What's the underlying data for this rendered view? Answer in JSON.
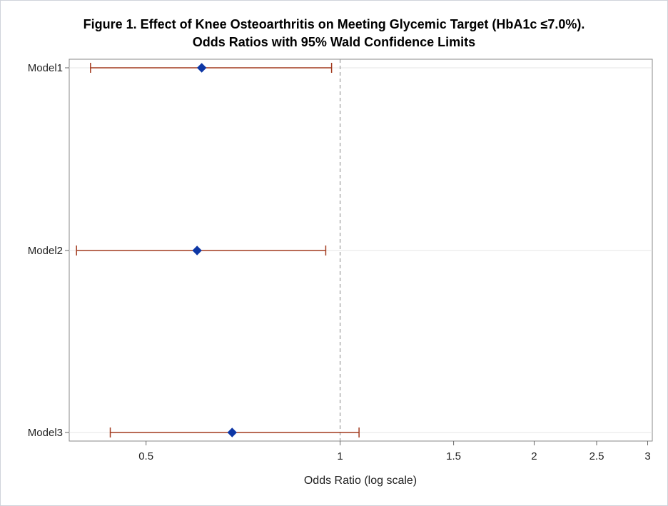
{
  "chart_data": {
    "type": "forest",
    "title": "Figure 1. Effect of Knee Osteoarthritis on Meeting Glycemic Target (HbA1c ≤7.0%).",
    "subtitle": "Odds Ratios with 95% Wald Confidence Limits",
    "xlabel": "Odds Ratio (log scale)",
    "ylabel": "",
    "x_scale": "log",
    "xlim": [
      0.38,
      3.05
    ],
    "xticks": [
      0.5,
      1,
      1.5,
      2,
      2.5,
      3
    ],
    "xtick_labels": [
      "0.5",
      "1",
      "1.5",
      "2",
      "2.5",
      "3"
    ],
    "reference_line": 1,
    "categories": [
      "Model1",
      "Model2",
      "Model3"
    ],
    "estimates": [
      0.61,
      0.6,
      0.68
    ],
    "lower": [
      0.41,
      0.39,
      0.44
    ],
    "upper": [
      0.97,
      0.95,
      1.07
    ],
    "marker_color": "#0e37a5",
    "interval_color": "#a23a1e",
    "ref_line_color": "#9a9a9a"
  }
}
